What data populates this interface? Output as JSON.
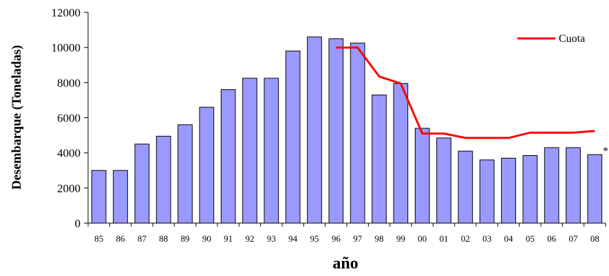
{
  "chart_data": {
    "type": "bar",
    "title": "",
    "xlabel": "año",
    "ylabel": "Desembarque (Toneladas)",
    "ylim": [
      0,
      12000
    ],
    "yticks": [
      "0",
      "2000",
      "4000",
      "6000",
      "8000",
      "10000",
      "12000"
    ],
    "categories": [
      "85",
      "86",
      "87",
      "88",
      "89",
      "90",
      "91",
      "92",
      "93",
      "94",
      "95",
      "96",
      "97",
      "98",
      "99",
      "00",
      "01",
      "02",
      "03",
      "04",
      "05",
      "06",
      "07",
      "08"
    ],
    "series": [
      {
        "type": "bar",
        "color": "#9999ff",
        "values": [
          3000,
          3000,
          4500,
          4950,
          5600,
          6600,
          7600,
          8250,
          8250,
          9800,
          10600,
          10500,
          10250,
          7300,
          7950,
          5400,
          4850,
          4100,
          3600,
          3700,
          3850,
          4300,
          4300,
          3900
        ]
      },
      {
        "name": "Cuota",
        "type": "line",
        "color": "#ff0000",
        "values": [
          null,
          null,
          null,
          null,
          null,
          null,
          null,
          null,
          null,
          null,
          null,
          10000,
          10000,
          8350,
          7950,
          5100,
          5100,
          4850,
          4850,
          4850,
          5150,
          5150,
          5150,
          5250
        ]
      }
    ],
    "legend": {
      "position": "top-right",
      "entries": [
        "Cuota"
      ]
    },
    "annotation": "*",
    "grid": false
  }
}
